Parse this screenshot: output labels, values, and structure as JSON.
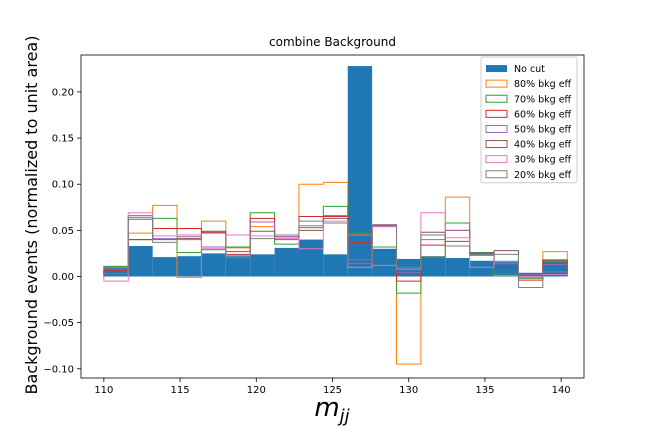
{
  "chart_data": {
    "type": "histogram",
    "title": "combine Background",
    "xlabel": "m_jj",
    "xlabel_main": "m",
    "xlabel_sub": "jj",
    "ylabel": "Background events (normalized to unit area)",
    "xlim": [
      108.5,
      141.5
    ],
    "ylim": [
      -0.11,
      0.24
    ],
    "xticks": [
      110,
      115,
      120,
      125,
      130,
      135,
      140
    ],
    "xtick_labels": [
      "110",
      "115",
      "120",
      "125",
      "130",
      "135",
      "140"
    ],
    "yticks": [
      -0.1,
      -0.05,
      0.0,
      0.05,
      0.1,
      0.15,
      0.2
    ],
    "ytick_labels": [
      "−0.10",
      "−0.05",
      "0.00",
      "0.05",
      "0.10",
      "0.15",
      "0.20"
    ],
    "bin_edges": [
      110,
      111.6,
      113.2,
      114.8,
      116.4,
      118,
      119.6,
      121.2,
      122.8,
      124.4,
      126,
      127.6,
      129.2,
      130.8,
      132.4,
      134,
      135.6,
      137.2,
      138.8,
      140.4
    ],
    "legend_position": "upper right",
    "grid": false,
    "series": [
      {
        "name": "No cut",
        "style": "filled",
        "color": "#1f77b4",
        "values": [
          0.011,
          0.033,
          0.021,
          0.022,
          0.025,
          0.022,
          0.024,
          0.031,
          0.04,
          0.024,
          0.228,
          0.03,
          0.019,
          0.022,
          0.02,
          0.017,
          0.017,
          0.004,
          0.016
        ]
      },
      {
        "name": "80% bkg eff",
        "style": "step",
        "color": "#ff7f0e",
        "values": [
          0.01,
          0.047,
          0.077,
          -0.001,
          0.06,
          0.031,
          0.054,
          0.043,
          0.1,
          0.102,
          0.045,
          0.012,
          -0.095,
          0.021,
          0.086,
          0.025,
          0.001,
          -0.001,
          0.027
        ]
      },
      {
        "name": "70% bkg eff",
        "style": "step",
        "color": "#2ca02c",
        "values": [
          0.011,
          0.04,
          0.063,
          0.026,
          0.029,
          0.032,
          0.069,
          0.035,
          0.053,
          0.076,
          0.047,
          0.032,
          -0.018,
          0.021,
          0.058,
          0.026,
          0.003,
          -0.002,
          0.017
        ]
      },
      {
        "name": "60% bkg eff",
        "style": "step",
        "color": "#d62728",
        "values": [
          0.007,
          0.04,
          0.052,
          0.052,
          0.048,
          0.024,
          0.063,
          0.043,
          0.065,
          0.065,
          0.037,
          0.055,
          -0.005,
          0.034,
          0.05,
          0.023,
          0.01,
          -0.004,
          0.018
        ]
      },
      {
        "name": "50% bkg eff",
        "style": "step",
        "color": "#9467bd",
        "values": [
          0.008,
          0.066,
          0.041,
          0.043,
          0.032,
          0.023,
          0.059,
          0.043,
          0.055,
          0.066,
          0.018,
          0.056,
          0.004,
          0.04,
          0.05,
          0.024,
          0.014,
          0.002,
          0.013
        ]
      },
      {
        "name": "40% bkg eff",
        "style": "step",
        "color": "#8c564b",
        "values": [
          0.006,
          0.062,
          0.04,
          0.041,
          0.049,
          0.027,
          0.049,
          0.04,
          0.05,
          0.063,
          0.016,
          0.054,
          0.003,
          0.048,
          0.038,
          0.025,
          0.028,
          0.0,
          0.016
        ]
      },
      {
        "name": "30% bkg eff",
        "style": "step",
        "color": "#e377c2",
        "values": [
          -0.005,
          0.069,
          0.044,
          0.045,
          0.03,
          0.045,
          0.044,
          0.041,
          0.03,
          0.06,
          0.01,
          0.054,
          0.008,
          0.069,
          0.042,
          0.01,
          0.016,
          0.0,
          0.002
        ]
      },
      {
        "name": "20% bkg eff",
        "style": "step",
        "color": "#7f7f7f",
        "values": [
          0.003,
          0.064,
          0.037,
          0.04,
          0.047,
          0.02,
          0.041,
          0.045,
          0.06,
          0.058,
          0.014,
          0.056,
          0.01,
          0.045,
          0.033,
          0.023,
          0.024,
          -0.012,
          0.005
        ]
      }
    ]
  }
}
